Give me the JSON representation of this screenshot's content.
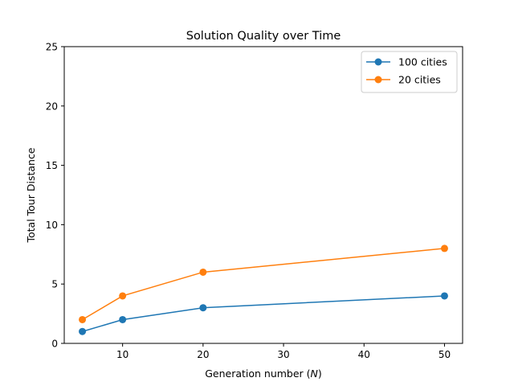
{
  "chart_data": {
    "type": "line",
    "title": "Solution Quality over Time",
    "xlabel_pre": "Generation number (",
    "xlabel_var": "N",
    "xlabel_post": ")",
    "ylabel": "Total Tour Distance",
    "xlim": [
      2.75,
      52.25
    ],
    "ylim": [
      0,
      25
    ],
    "xticks": [
      10,
      20,
      30,
      40,
      50
    ],
    "yticks": [
      0,
      5,
      10,
      15,
      20,
      25
    ],
    "grid": false,
    "legend_position": "top-right",
    "series": [
      {
        "name": "100 cities",
        "color": "#1f77b4",
        "marker": "circle",
        "x": [
          5,
          10,
          20,
          50
        ],
        "y": [
          1,
          2,
          3,
          4
        ]
      },
      {
        "name": "20 cities",
        "color": "#ff7f0e",
        "marker": "circle",
        "x": [
          5,
          10,
          20,
          50
        ],
        "y": [
          2,
          4,
          6,
          8
        ]
      }
    ]
  }
}
